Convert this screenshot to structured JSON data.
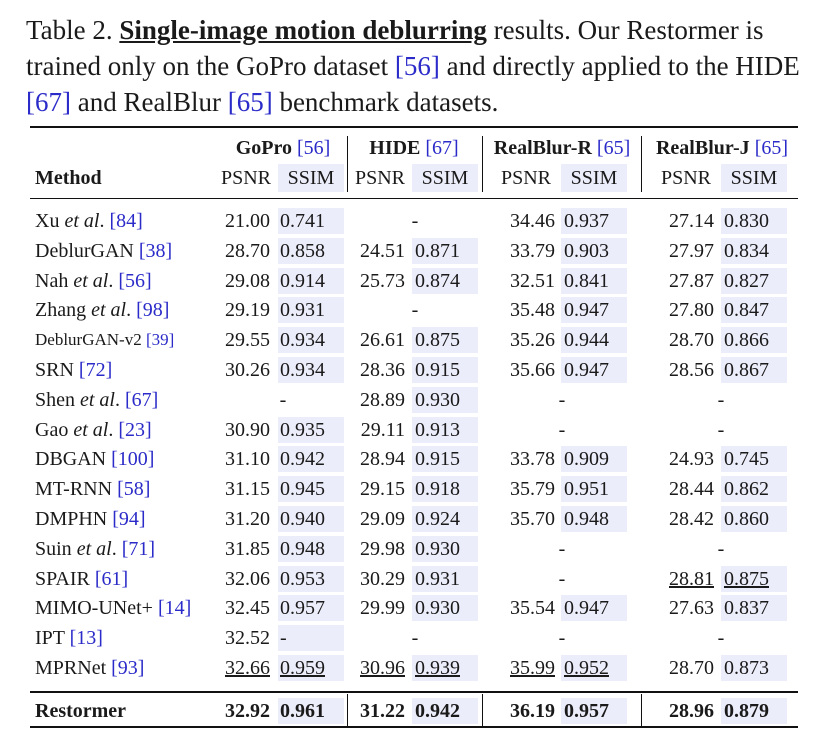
{
  "caption": {
    "label": "Table 2.",
    "title": "Single-image motion deblurring",
    "text_1": " results. Our Restormer is trained only on the GoPro dataset ",
    "ref_gopro": "[56]",
    "text_2": " and directly applied to the HIDE ",
    "ref_hide": "[67]",
    "text_3": " and RealBlur ",
    "ref_realblur": "[65]",
    "text_4": " benchmark datasets."
  },
  "header": {
    "method": "Method",
    "groups": [
      {
        "name": "GoPro",
        "ref": "[56]"
      },
      {
        "name": "HIDE",
        "ref": "[67]"
      },
      {
        "name": "RealBlur-R",
        "ref": "[65]"
      },
      {
        "name": "RealBlur-J",
        "ref": "[65]"
      }
    ],
    "psnr": "PSNR",
    "ssim": "SSIM"
  },
  "rows": [
    {
      "name": "Xu ",
      "etal": "et al",
      "suffix": ". ",
      "ref": "[84]",
      "small": false,
      "gopro": [
        "21.00",
        "0.741"
      ],
      "hide": [
        "-",
        ""
      ],
      "realblur_r": [
        "34.46",
        "0.937"
      ],
      "realblur_j": [
        "27.14",
        "0.830"
      ]
    },
    {
      "name": "DeblurGAN ",
      "etal": "",
      "suffix": "",
      "ref": "[38]",
      "small": false,
      "gopro": [
        "28.70",
        "0.858"
      ],
      "hide": [
        "24.51",
        "0.871"
      ],
      "realblur_r": [
        "33.79",
        "0.903"
      ],
      "realblur_j": [
        "27.97",
        "0.834"
      ]
    },
    {
      "name": "Nah ",
      "etal": "et al",
      "suffix": ". ",
      "ref": "[56]",
      "small": false,
      "gopro": [
        "29.08",
        "0.914"
      ],
      "hide": [
        "25.73",
        "0.874"
      ],
      "realblur_r": [
        "32.51",
        "0.841"
      ],
      "realblur_j": [
        "27.87",
        "0.827"
      ]
    },
    {
      "name": "Zhang ",
      "etal": "et al",
      "suffix": ". ",
      "ref": "[98]",
      "small": false,
      "gopro": [
        "29.19",
        "0.931"
      ],
      "hide": [
        "-",
        ""
      ],
      "realblur_r": [
        "35.48",
        "0.947"
      ],
      "realblur_j": [
        "27.80",
        "0.847"
      ]
    },
    {
      "name": "DeblurGAN-v2 ",
      "etal": "",
      "suffix": "",
      "ref": "[39]",
      "small": true,
      "gopro": [
        "29.55",
        "0.934"
      ],
      "hide": [
        "26.61",
        "0.875"
      ],
      "realblur_r": [
        "35.26",
        "0.944"
      ],
      "realblur_j": [
        "28.70",
        "0.866"
      ]
    },
    {
      "name": "SRN ",
      "etal": "",
      "suffix": "",
      "ref": "[72]",
      "small": false,
      "gopro": [
        "30.26",
        "0.934"
      ],
      "hide": [
        "28.36",
        "0.915"
      ],
      "realblur_r": [
        "35.66",
        "0.947"
      ],
      "realblur_j": [
        "28.56",
        "0.867"
      ]
    },
    {
      "name": "Shen ",
      "etal": "et al",
      "suffix": ". ",
      "ref": "[67]",
      "small": false,
      "gopro": [
        "-",
        ""
      ],
      "hide": [
        "28.89",
        "0.930"
      ],
      "realblur_r": [
        "-",
        ""
      ],
      "realblur_j": [
        "-",
        ""
      ]
    },
    {
      "name": "Gao ",
      "etal": "et al",
      "suffix": ". ",
      "ref": "[23]",
      "small": false,
      "gopro": [
        "30.90",
        "0.935"
      ],
      "hide": [
        "29.11",
        "0.913"
      ],
      "realblur_r": [
        "-",
        ""
      ],
      "realblur_j": [
        "-",
        ""
      ]
    },
    {
      "name": "DBGAN ",
      "etal": "",
      "suffix": "",
      "ref": "[100]",
      "small": false,
      "gopro": [
        "31.10",
        "0.942"
      ],
      "hide": [
        "28.94",
        "0.915"
      ],
      "realblur_r": [
        "33.78",
        "0.909"
      ],
      "realblur_j": [
        "24.93",
        "0.745"
      ]
    },
    {
      "name": "MT-RNN ",
      "etal": "",
      "suffix": "",
      "ref": "[58]",
      "small": false,
      "gopro": [
        "31.15",
        "0.945"
      ],
      "hide": [
        "29.15",
        "0.918"
      ],
      "realblur_r": [
        "35.79",
        "0.951"
      ],
      "realblur_j": [
        "28.44",
        "0.862"
      ]
    },
    {
      "name": "DMPHN ",
      "etal": "",
      "suffix": "",
      "ref": "[94]",
      "small": false,
      "gopro": [
        "31.20",
        "0.940"
      ],
      "hide": [
        "29.09",
        "0.924"
      ],
      "realblur_r": [
        "35.70",
        "0.948"
      ],
      "realblur_j": [
        "28.42",
        "0.860"
      ]
    },
    {
      "name": "Suin ",
      "etal": "et al",
      "suffix": ". ",
      "ref": "[71]",
      "small": false,
      "gopro": [
        "31.85",
        "0.948"
      ],
      "hide": [
        "29.98",
        "0.930"
      ],
      "realblur_r": [
        "-",
        ""
      ],
      "realblur_j": [
        "-",
        ""
      ]
    },
    {
      "name": "SPAIR ",
      "etal": "",
      "suffix": "",
      "ref": "[61]",
      "small": false,
      "gopro": [
        "32.06",
        "0.953"
      ],
      "hide": [
        "30.29",
        "0.931"
      ],
      "realblur_r": [
        "-",
        ""
      ],
      "realblur_j": [
        "28.81",
        "0.875"
      ],
      "underline": {
        "realblur_j": [
          true,
          true
        ]
      }
    },
    {
      "name": "MIMO-UNet+ ",
      "etal": "",
      "suffix": "",
      "ref": "[14]",
      "small": false,
      "gopro": [
        "32.45",
        "0.957"
      ],
      "hide": [
        "29.99",
        "0.930"
      ],
      "realblur_r": [
        "35.54",
        "0.947"
      ],
      "realblur_j": [
        "27.63",
        "0.837"
      ]
    },
    {
      "name": "IPT ",
      "etal": "",
      "suffix": "",
      "ref": "[13]",
      "small": false,
      "gopro": [
        "32.52",
        "-"
      ],
      "hide": [
        "-",
        ""
      ],
      "realblur_r": [
        "-",
        ""
      ],
      "realblur_j": [
        "-",
        ""
      ]
    },
    {
      "name": "MPRNet ",
      "etal": "",
      "suffix": "",
      "ref": "[93]",
      "small": false,
      "gopro": [
        "32.66",
        "0.959"
      ],
      "hide": [
        "30.96",
        "0.939"
      ],
      "realblur_r": [
        "35.99",
        "0.952"
      ],
      "realblur_j": [
        "28.70",
        "0.873"
      ],
      "underline": {
        "gopro": [
          true,
          true
        ],
        "hide": [
          true,
          true
        ],
        "realblur_r": [
          true,
          true
        ]
      }
    }
  ],
  "final_row": {
    "name": "Restormer",
    "gopro": [
      "32.92",
      "0.961"
    ],
    "hide": [
      "31.22",
      "0.942"
    ],
    "realblur_r": [
      "36.19",
      "0.957"
    ],
    "realblur_j": [
      "28.96",
      "0.879"
    ]
  },
  "colors": {
    "ref": "#2b2bc9",
    "ssim_shade": "#ecedfa",
    "rule": "#111111"
  }
}
